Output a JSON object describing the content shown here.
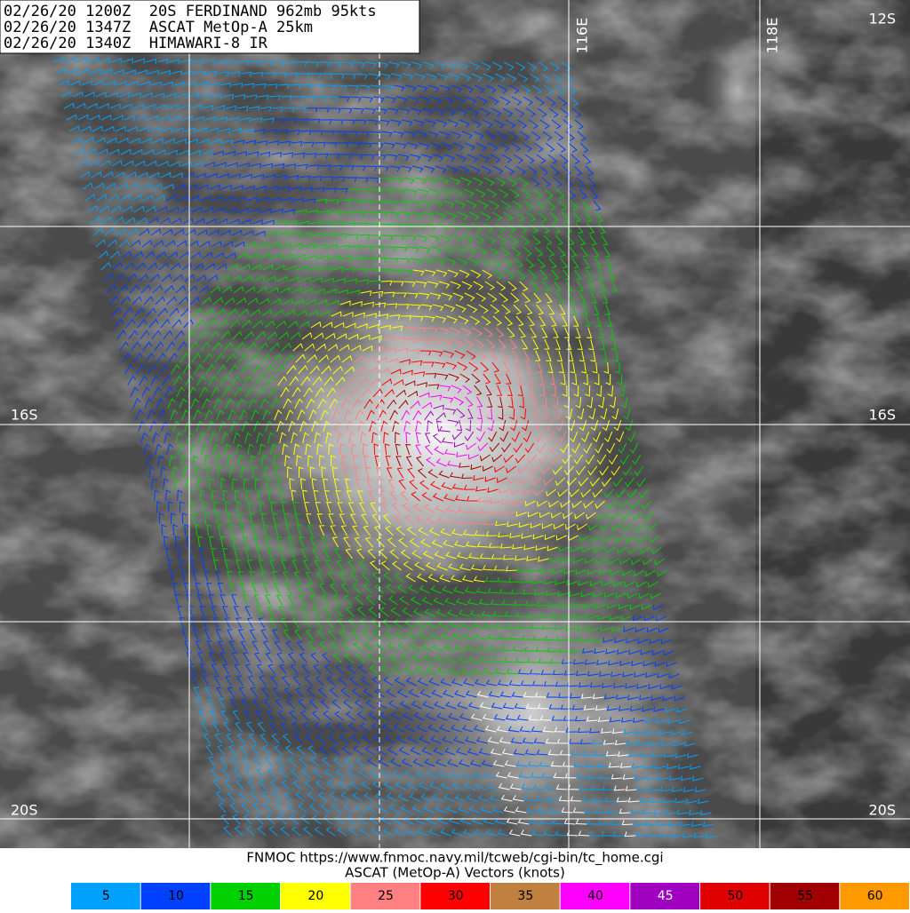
{
  "header": {
    "lines": [
      "02/26/20 1200Z  20S FERDINAND 962mb 95kts",
      "02/26/20 1347Z  ASCAT MetOp-A 25km",
      "02/26/20 1340Z  HIMAWARI-8 IR"
    ]
  },
  "map": {
    "lon_labels": [
      "116E",
      "118E"
    ],
    "lat_labels_right": [
      "12S",
      "16S",
      "20S"
    ],
    "lat_labels_left": [
      "16S",
      "20S"
    ]
  },
  "footer": {
    "source": "FNMOC https://www.fnmoc.navy.mil/tcweb/cgi-bin/tc_home.cgi",
    "caption": "ASCAT (MetOp-A) Vectors (knots)"
  },
  "legend": [
    {
      "label": 5,
      "color": "#00a0ff"
    },
    {
      "label": 10,
      "color": "#0040ff"
    },
    {
      "label": 15,
      "color": "#00d000"
    },
    {
      "label": 20,
      "color": "#ffff00"
    },
    {
      "label": 25,
      "color": "#ff8080"
    },
    {
      "label": 30,
      "color": "#ff0000"
    },
    {
      "label": 35,
      "color": "#c08040"
    },
    {
      "label": 40,
      "color": "#ff00ff"
    },
    {
      "label": 45,
      "color": "#a000c0"
    },
    {
      "label": 50,
      "color": "#e00000"
    },
    {
      "label": 55,
      "color": "#a00000"
    },
    {
      "label": 60,
      "color": "#ff9900"
    }
  ]
}
